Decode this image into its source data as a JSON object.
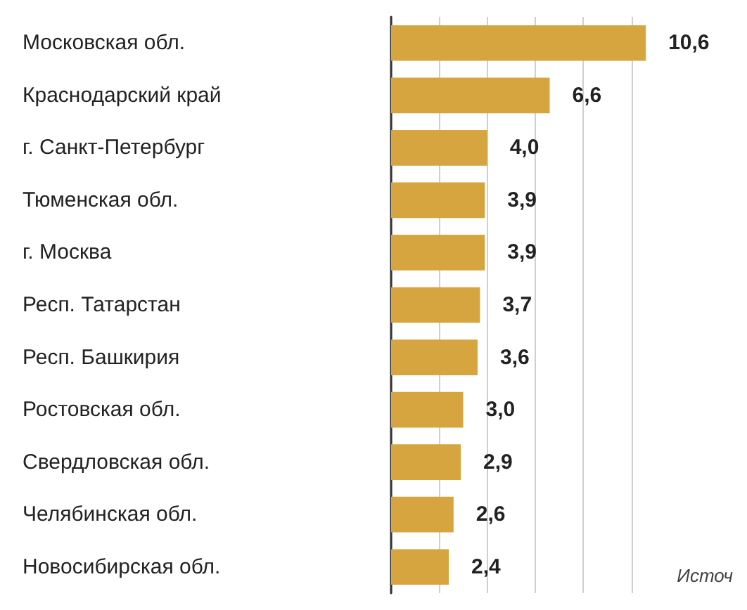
{
  "chart_data": {
    "type": "bar",
    "orientation": "horizontal",
    "categories": [
      "Московская обл.",
      "Краснодарский край",
      "г. Санкт-Петербург",
      "Тюменская обл.",
      "г. Москва",
      "Респ. Татарстан",
      "Респ. Башкирия",
      "Ростовская обл.",
      "Свердловская обл.",
      "Челябинская обл.",
      "Новосибирская обл."
    ],
    "values": [
      10.6,
      6.6,
      4.0,
      3.9,
      3.9,
      3.7,
      3.6,
      3.0,
      2.9,
      2.6,
      2.4
    ],
    "value_labels": [
      "10,6",
      "6,6",
      "4,0",
      "3,9",
      "3,9",
      "3,7",
      "3,6",
      "3,0",
      "2,9",
      "2,6",
      "2,4"
    ],
    "color": "#d6a53f",
    "xticks": [
      0,
      2,
      4,
      6,
      8,
      10
    ],
    "grid": "x",
    "tick_labels": "y",
    "annotations": [
      "Источ"
    ]
  }
}
